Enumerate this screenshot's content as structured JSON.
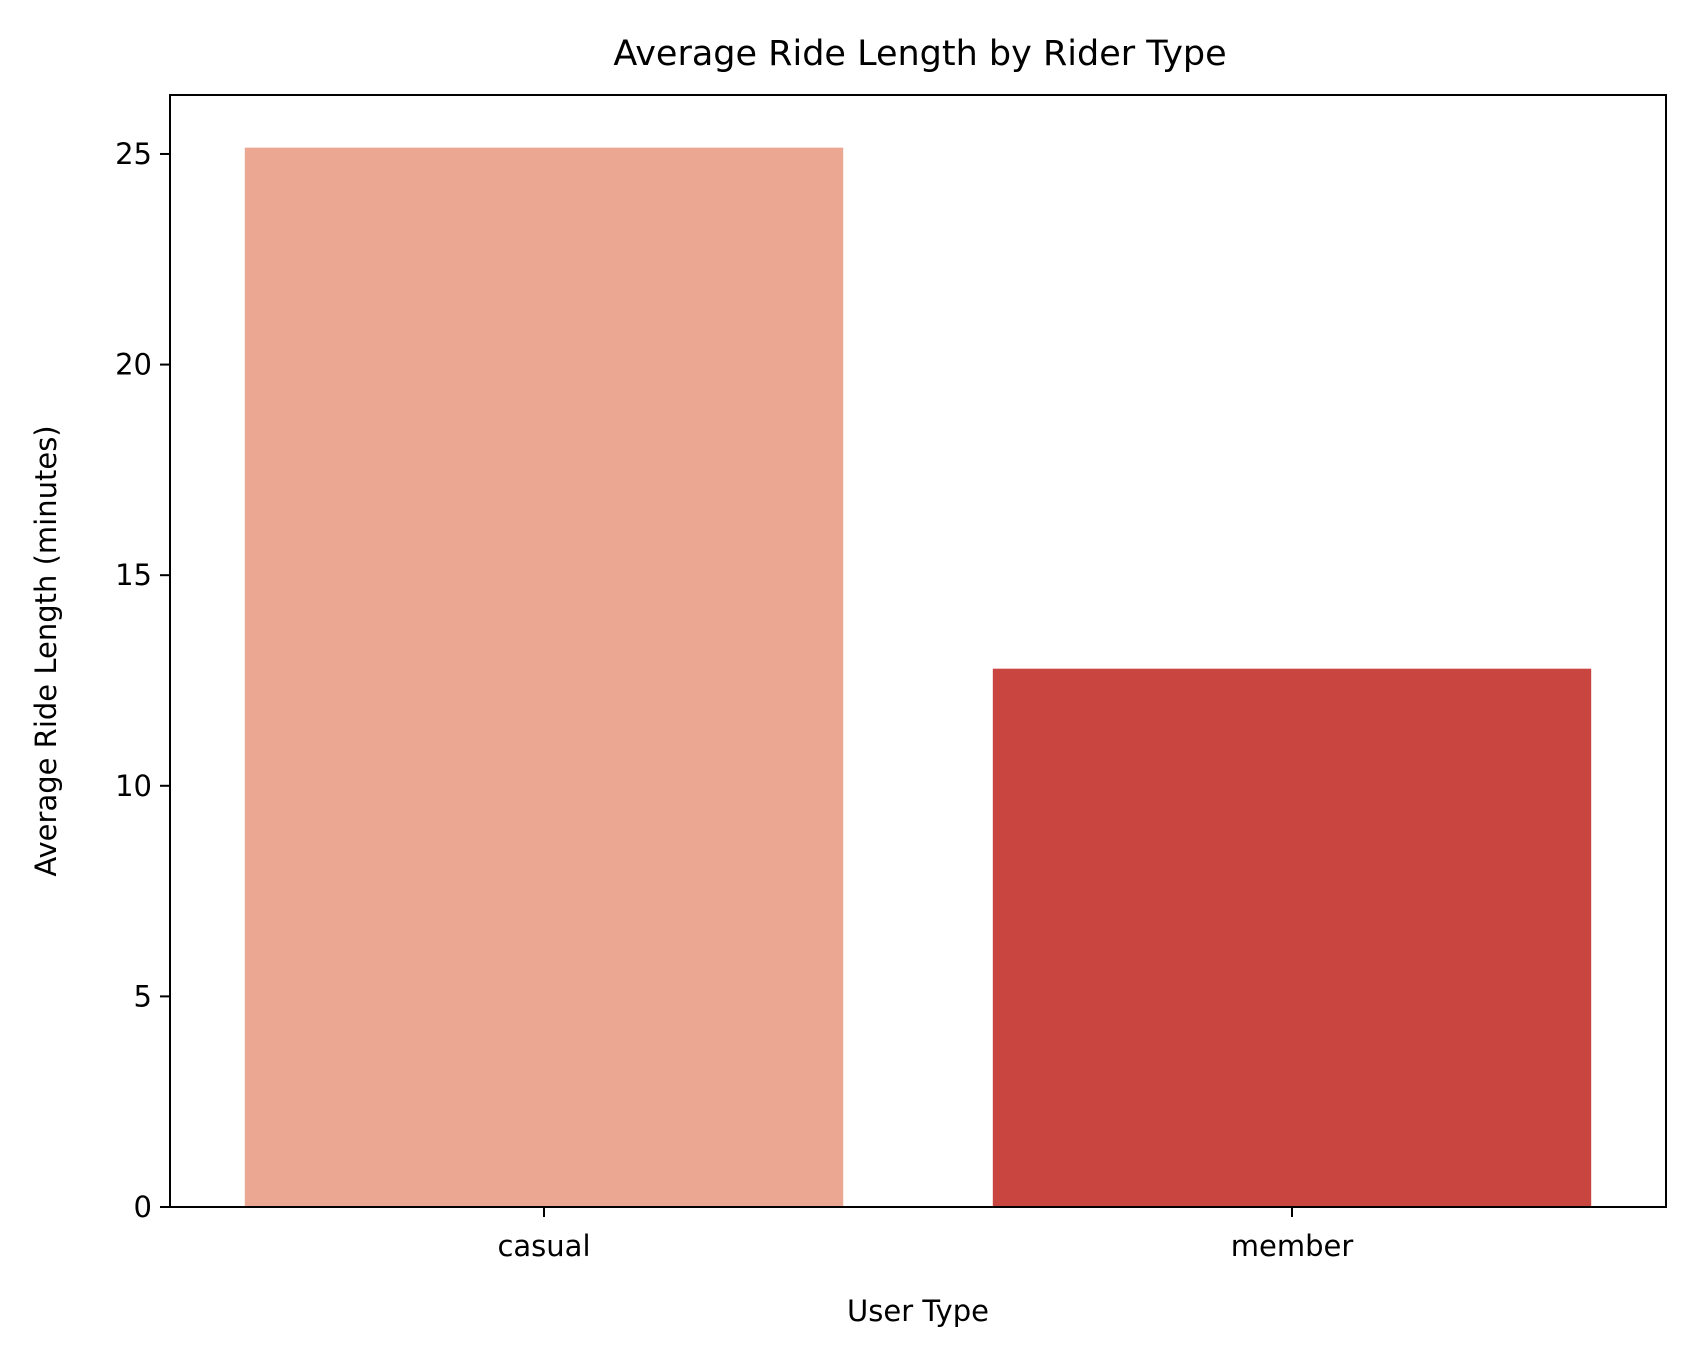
{
  "chart_data": {
    "type": "bar",
    "title": "Average Ride Length by Rider Type",
    "xlabel": "User Type",
    "ylabel": "Average Ride Length (minutes)",
    "categories": [
      "casual",
      "member"
    ],
    "values": [
      25.15,
      12.78
    ],
    "bar_colors": [
      "#eca793",
      "#c94540"
    ],
    "ylim": [
      0,
      26.4
    ],
    "yticks": [
      0,
      5,
      10,
      15,
      20,
      25
    ],
    "grid": false,
    "legend": "none"
  }
}
